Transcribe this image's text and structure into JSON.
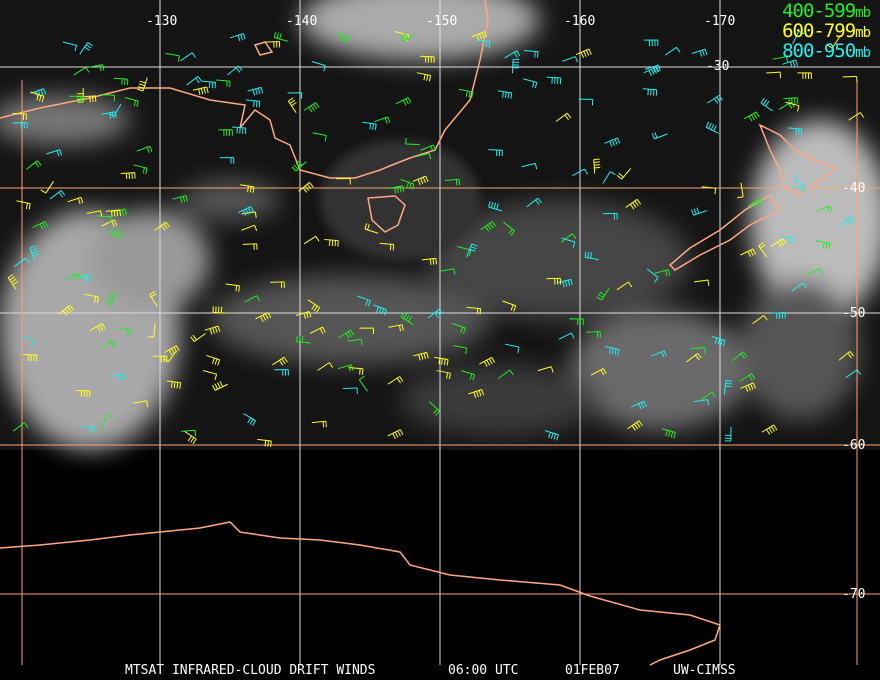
{
  "legend": [
    {
      "range": "400-599",
      "unit": "mb",
      "color": "#22ee22"
    },
    {
      "range": "600-799",
      "unit": "mb",
      "color": "#ffff22"
    },
    {
      "range": "800-950",
      "unit": "mb",
      "color": "#22eeee"
    }
  ],
  "longitude_labels": [
    "-130",
    "-140",
    "-150",
    "-160",
    "-170"
  ],
  "latitude_labels": [
    "-30",
    "-40",
    "-50",
    "-60",
    "-70"
  ],
  "footer": {
    "satellite_product": "MTSAT INFRARED-CLOUD DRIFT WINDS",
    "time": "06:00 UTC",
    "date": "01FEB07",
    "source": "UW-CIMSS"
  },
  "colors": {
    "coastline": "#ffa880",
    "grid_major": "#ffa070",
    "grid_minor": "#dddddd"
  }
}
